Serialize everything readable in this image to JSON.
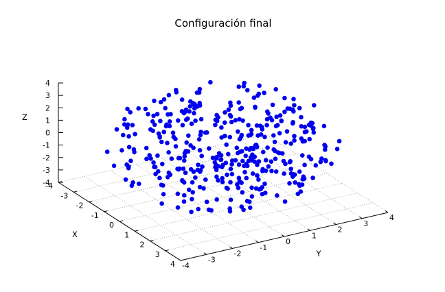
{
  "chart_data": {
    "type": "scatter3d",
    "title": "Configuración final",
    "xlabel": "X",
    "ylabel": "Y",
    "zlabel": "Z",
    "xlim": [
      -4,
      4
    ],
    "ylim": [
      -4,
      4
    ],
    "zlim": [
      -4,
      4
    ],
    "x_ticks": [
      "-4",
      "-3",
      "-2",
      "-1",
      "0",
      "1",
      "2",
      "3",
      "4"
    ],
    "y_ticks": [
      "-4",
      "-3",
      "-2",
      "-1",
      "0",
      "1",
      "2",
      "3",
      "4"
    ],
    "z_ticks": [
      "4",
      "3",
      "2",
      "1",
      "0",
      "-1",
      "-2",
      "-3",
      "-4"
    ],
    "grid": true,
    "marker_color": "#0000ee",
    "approx_point_count": 400,
    "distribution": "points spread in a sphere of radius about 4 centred at the origin"
  }
}
